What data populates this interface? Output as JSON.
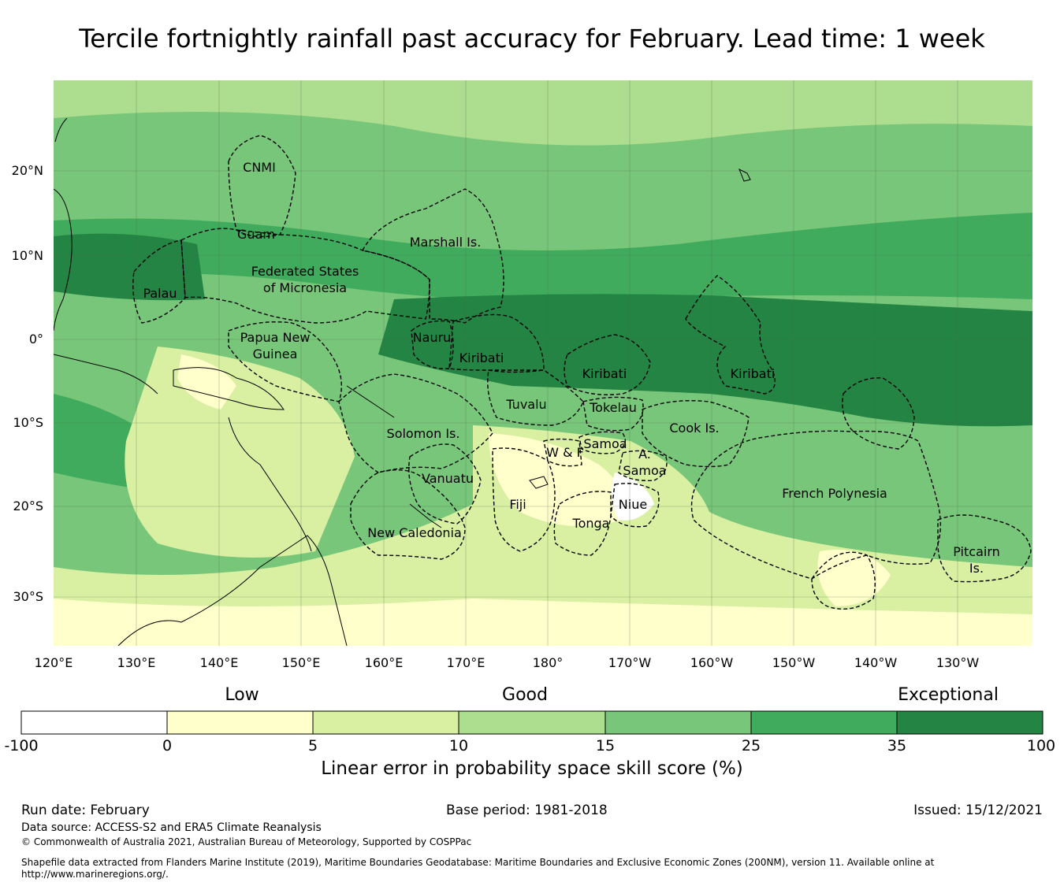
{
  "title": "Tercile fortnightly rainfall past accuracy for February. Lead time: 1 week",
  "map": {
    "lat_labels": [
      "20°N",
      "10°N",
      "0°",
      "10°S",
      "20°S",
      "30°S"
    ],
    "lon_labels": [
      "120°E",
      "130°E",
      "140°E",
      "150°E",
      "160°E",
      "170°E",
      "180°",
      "170°W",
      "160°W",
      "150°W",
      "140°W",
      "130°W"
    ],
    "zones": [
      "CNMI",
      "Guam",
      "Marshall Is.",
      "Federated States",
      "of Micronesia",
      "Palau",
      "Papua New",
      "Guinea",
      "Nauru",
      "Kiribati",
      "Kiribati",
      "Kiribati",
      "Tuvalu",
      "Tokelau",
      "Solomon Is.",
      "Cook Is.",
      "Samoa",
      "W & F",
      "A.",
      "Samoa",
      "Vanuatu",
      "Fiji",
      "Niue",
      "Tonga",
      "French Polynesia",
      "New Caledonia",
      "Pitcairn",
      "Is."
    ]
  },
  "legend": {
    "categories": [
      "Low",
      "Good",
      "Exceptional"
    ],
    "ticks": [
      "-100",
      "0",
      "5",
      "10",
      "15",
      "25",
      "35",
      "100"
    ],
    "colors": [
      "#ffffff",
      "#ffffcc",
      "#d9f0a3",
      "#addd8e",
      "#78c679",
      "#41ab5d",
      "#238443"
    ],
    "label": "Linear error in probability space skill score (%)"
  },
  "footer": {
    "run_date": "Run date: February",
    "base_period": "Base period: 1981-2018",
    "issued": "Issued: 15/12/2021",
    "data_source": "Data source: ACCESS-S2 and ERA5 Climate Reanalysis",
    "copyright": "© Commonwealth of Australia 2021, Australian Bureau of Meteorology, Supported by COSPPac",
    "shapefile_line1": "Shapefile data extracted from Flanders Marine Institute (2019), Maritime Boundaries Geodatabase: Maritime Boundaries and Exclusive Economic Zones (200NM), version 11. Available online at",
    "shapefile_line2": "http://www.marineregions.org/."
  }
}
